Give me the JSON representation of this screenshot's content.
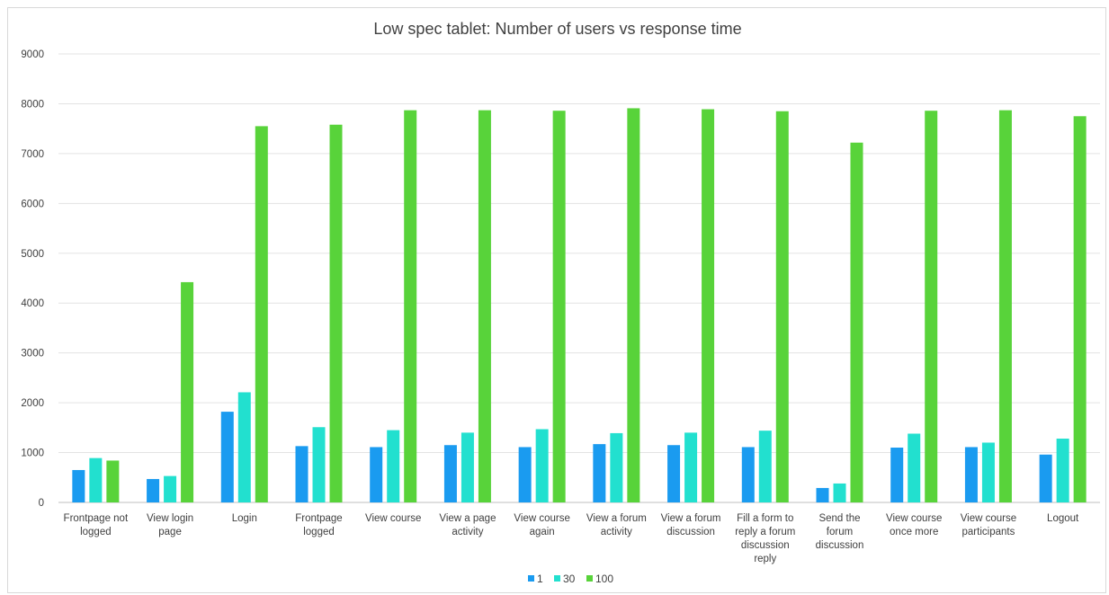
{
  "chart_data": {
    "type": "bar",
    "title": "Low spec tablet: Number of users vs response time",
    "xlabel": "",
    "ylabel": "",
    "ylim": [
      0,
      9000
    ],
    "yticks": [
      0,
      1000,
      2000,
      3000,
      4000,
      5000,
      6000,
      7000,
      8000,
      9000
    ],
    "grid": true,
    "legend_position": "bottom",
    "categories": [
      [
        "Frontpage not",
        "logged"
      ],
      [
        "View login",
        "page"
      ],
      [
        "Login"
      ],
      [
        "Frontpage",
        "logged"
      ],
      [
        "View course"
      ],
      [
        "View a page",
        "activity"
      ],
      [
        "View course",
        "again"
      ],
      [
        "View a forum",
        "activity"
      ],
      [
        "View a forum",
        "discussion"
      ],
      [
        "Fill a form to",
        "reply a forum",
        "discussion",
        "reply"
      ],
      [
        "Send the",
        "forum",
        "discussion"
      ],
      [
        "View course",
        "once more"
      ],
      [
        "View course",
        "participants"
      ],
      [
        "Logout"
      ]
    ],
    "series": [
      {
        "name": "1",
        "color": "#1a9bf0",
        "values": [
          650,
          470,
          1820,
          1130,
          1110,
          1150,
          1110,
          1170,
          1150,
          1110,
          290,
          1100,
          1110,
          960
        ]
      },
      {
        "name": "30",
        "color": "#22e0cf",
        "values": [
          890,
          530,
          2210,
          1510,
          1450,
          1400,
          1470,
          1390,
          1400,
          1440,
          380,
          1380,
          1200,
          1280
        ]
      },
      {
        "name": "100",
        "color": "#58d33a",
        "values": [
          840,
          4420,
          7550,
          7580,
          7870,
          7870,
          7860,
          7910,
          7890,
          7850,
          7220,
          7860,
          7870,
          7750
        ]
      }
    ]
  }
}
